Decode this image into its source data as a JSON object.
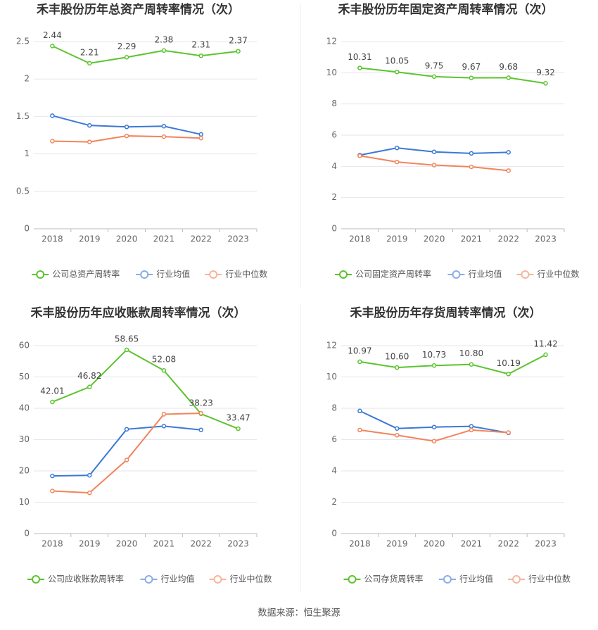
{
  "chart_data": [
    {
      "type": "line",
      "title": "禾丰股份历年总资产周转率情况（次）",
      "categories": [
        "2018",
        "2019",
        "2020",
        "2021",
        "2022",
        "2023"
      ],
      "ylim": [
        0,
        2.5
      ],
      "yticks": [
        0,
        0.5,
        1,
        1.5,
        2,
        2.5
      ],
      "grid": true,
      "legend": "bottom",
      "series": [
        {
          "name": "公司总资产周转率",
          "color": "#5bc42e",
          "values": [
            2.44,
            2.21,
            2.29,
            2.38,
            2.31,
            2.37
          ],
          "value_labels": [
            "2.44",
            "2.21",
            "2.29",
            "2.38",
            "2.31",
            "2.37"
          ]
        },
        {
          "name": "行业均值",
          "color": "#3a78d6",
          "values": [
            1.51,
            1.38,
            1.36,
            1.37,
            1.26,
            null
          ]
        },
        {
          "name": "行业中位数",
          "color": "#f2845a",
          "values": [
            1.17,
            1.16,
            1.24,
            1.23,
            1.21,
            null
          ]
        }
      ]
    },
    {
      "type": "line",
      "title": "禾丰股份历年固定资产周转率情况（次）",
      "categories": [
        "2018",
        "2019",
        "2020",
        "2021",
        "2022",
        "2023"
      ],
      "ylim": [
        0,
        12
      ],
      "yticks": [
        0,
        2,
        4,
        6,
        8,
        10,
        12
      ],
      "grid": true,
      "legend": "bottom",
      "series": [
        {
          "name": "公司固定资产周转率",
          "color": "#5bc42e",
          "values": [
            10.31,
            10.05,
            9.75,
            9.67,
            9.68,
            9.32
          ],
          "value_labels": [
            "10.31",
            "10.05",
            "9.75",
            "9.67",
            "9.68",
            "9.32"
          ]
        },
        {
          "name": "行业均值",
          "color": "#3a78d6",
          "values": [
            4.72,
            5.18,
            4.93,
            4.83,
            4.9,
            null
          ]
        },
        {
          "name": "行业中位数",
          "color": "#f2845a",
          "values": [
            4.68,
            4.28,
            4.08,
            3.97,
            3.73,
            null
          ]
        }
      ]
    },
    {
      "type": "line",
      "title": "禾丰股份历年应收账款周转率情况（次）",
      "categories": [
        "2018",
        "2019",
        "2020",
        "2021",
        "2022",
        "2023"
      ],
      "ylim": [
        0,
        60
      ],
      "yticks": [
        0,
        10,
        20,
        30,
        40,
        50,
        60
      ],
      "grid": true,
      "legend": "bottom",
      "series": [
        {
          "name": "公司应收账款周转率",
          "color": "#5bc42e",
          "values": [
            42.01,
            46.82,
            58.65,
            52.08,
            38.23,
            33.47
          ],
          "value_labels": [
            "42.01",
            "46.82",
            "58.65",
            "52.08",
            "38.23",
            "33.47"
          ]
        },
        {
          "name": "行业均值",
          "color": "#3a78d6",
          "values": [
            18.4,
            18.6,
            33.3,
            34.3,
            33.1,
            null
          ]
        },
        {
          "name": "行业中位数",
          "color": "#f2845a",
          "values": [
            13.6,
            13.0,
            23.5,
            38.1,
            38.4,
            null
          ]
        }
      ]
    },
    {
      "type": "line",
      "title": "禾丰股份历年存货周转率情况（次）",
      "categories": [
        "2018",
        "2019",
        "2020",
        "2021",
        "2022",
        "2023"
      ],
      "ylim": [
        0,
        12
      ],
      "yticks": [
        0,
        2,
        4,
        6,
        8,
        10,
        12
      ],
      "grid": true,
      "legend": "bottom",
      "series": [
        {
          "name": "公司存货周转率",
          "color": "#5bc42e",
          "values": [
            10.97,
            10.6,
            10.73,
            10.8,
            10.19,
            11.42
          ],
          "value_labels": [
            "10.97",
            "10.60",
            "10.73",
            "10.80",
            "10.19",
            "11.42"
          ]
        },
        {
          "name": "行业均值",
          "color": "#3a78d6",
          "values": [
            7.83,
            6.71,
            6.8,
            6.85,
            6.43,
            null
          ]
        },
        {
          "name": "行业中位数",
          "color": "#f2845a",
          "values": [
            6.61,
            6.28,
            5.9,
            6.61,
            6.45,
            null
          ]
        }
      ]
    }
  ],
  "source": "数据来源：恒生聚源"
}
